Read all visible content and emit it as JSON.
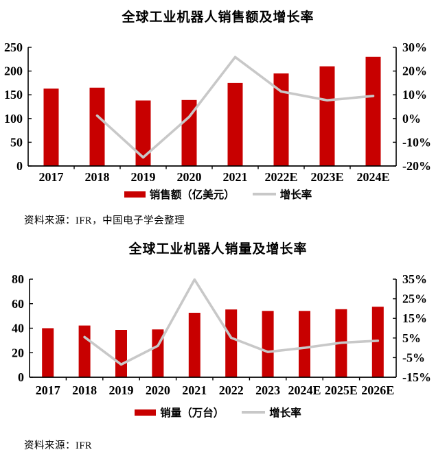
{
  "page": {
    "background": "#ffffff"
  },
  "colors": {
    "bar_red": "#c80000",
    "line_gray": "#c8c8c8",
    "axis": "#000000",
    "text": "#000000"
  },
  "charts": [
    {
      "title": "全球工业机器人销售额及增长率",
      "source": "资料来源：IFR，中国电子学会整理",
      "legend": [
        {
          "label": "销售额（亿美元）",
          "swatch": "bar"
        },
        {
          "label": "增长率",
          "swatch": "line"
        }
      ],
      "chart_data": {
        "type": "bar",
        "categories": [
          "2017",
          "2018",
          "2019",
          "2020",
          "2021",
          "2022E",
          "2023E",
          "2024E"
        ],
        "series": [
          {
            "name": "销售额（亿美元）",
            "type": "bar",
            "axis": "left",
            "values": [
              163,
              165,
              138,
              139,
              175,
              195,
              210,
              230
            ]
          },
          {
            "name": "增长率",
            "type": "line",
            "axis": "right",
            "unit": "%",
            "values": [
              null,
              1.2,
              -16.4,
              0.7,
              25.9,
              11.4,
              7.7,
              9.5
            ]
          }
        ],
        "left_axis": {
          "min": 0,
          "max": 250,
          "tick_values": [
            0,
            50,
            100,
            150,
            200,
            250
          ],
          "tick_labels": [
            "0",
            "50",
            "100",
            "150",
            "200",
            "250"
          ]
        },
        "right_axis": {
          "min": -20,
          "max": 30,
          "tick_values": [
            -20,
            -10,
            0,
            10,
            20,
            30
          ],
          "tick_labels": [
            "-20%",
            "-10%",
            "0%",
            "10%",
            "20%",
            "30%"
          ]
        },
        "grid": false,
        "legend_position": "bottom"
      }
    },
    {
      "title": "全球工业机器人销量及增长率",
      "source": "资料来源：IFR",
      "legend": [
        {
          "label": "销量（万台）",
          "swatch": "bar"
        },
        {
          "label": "增长率",
          "swatch": "line"
        }
      ],
      "chart_data": {
        "type": "bar",
        "categories": [
          "2017",
          "2018",
          "2019",
          "2020",
          "2021",
          "2022",
          "2023",
          "2024E",
          "2025E",
          "2026E"
        ],
        "series": [
          {
            "name": "销量（万台）",
            "type": "bar",
            "axis": "left",
            "values": [
              40.0,
              42.2,
              38.6,
              39.0,
              52.6,
              55.3,
              54.1,
              54.1,
              55.5,
              57.5
            ]
          },
          {
            "name": "增长率",
            "type": "line",
            "axis": "right",
            "unit": "%",
            "values": [
              null,
              5.5,
              -8.5,
              1.0,
              34.8,
              5.1,
              -2.1,
              0.0,
              2.6,
              3.6
            ]
          }
        ],
        "left_axis": {
          "min": 0,
          "max": 80,
          "tick_values": [
            0,
            20,
            40,
            60,
            80
          ],
          "tick_labels": [
            "0",
            "20",
            "40",
            "60",
            "80"
          ]
        },
        "right_axis": {
          "min": -15,
          "max": 35,
          "tick_values": [
            -15,
            -5,
            5,
            15,
            25,
            35
          ],
          "tick_labels": [
            "-15%",
            "-5%",
            "5%",
            "15%",
            "25%",
            "35%"
          ]
        },
        "grid": false,
        "legend_position": "bottom"
      }
    }
  ]
}
